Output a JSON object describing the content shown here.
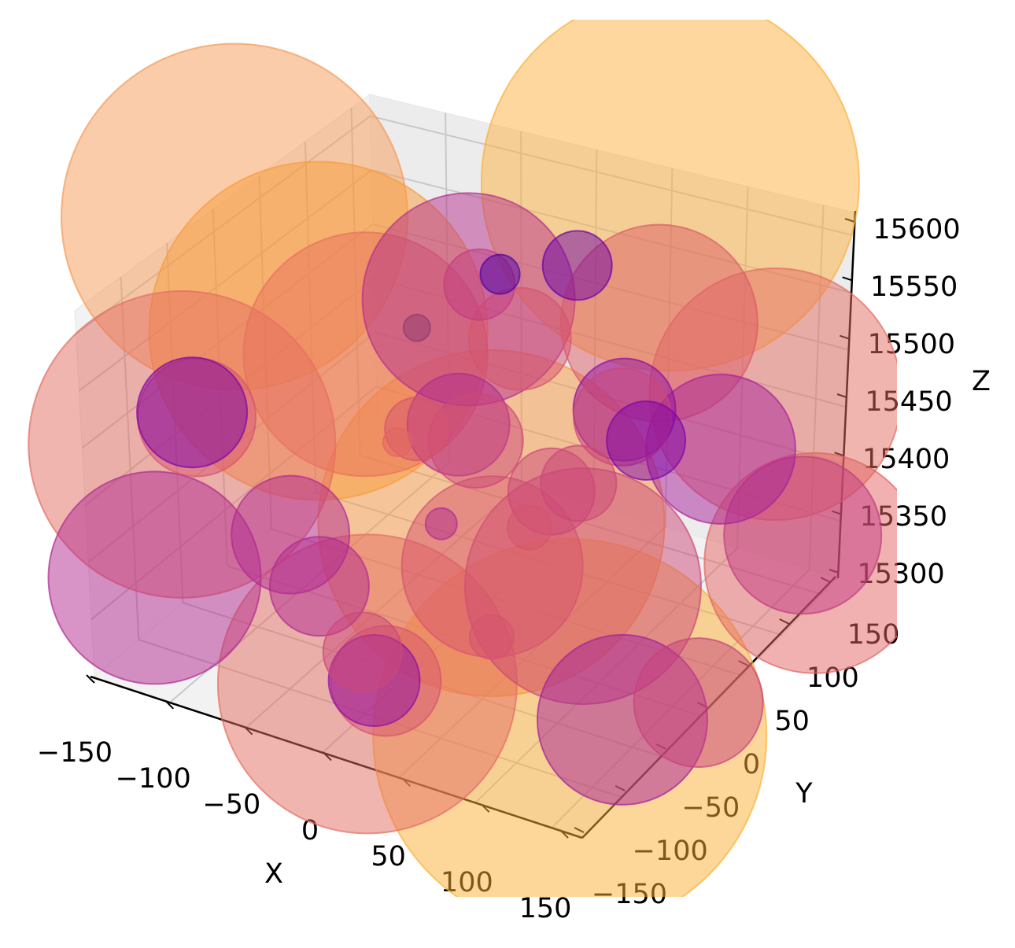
{
  "chart_data": {
    "type": "scatter3d",
    "xlabel": "X",
    "ylabel": "Y",
    "zlabel": "Z",
    "xlim": [
      -150,
      150
    ],
    "ylim": [
      -150,
      150
    ],
    "zlim": [
      15290,
      15610
    ],
    "xticks": [
      "−150",
      "−100",
      "−50",
      "0",
      "50",
      "100",
      "150"
    ],
    "yticks": [
      "−150",
      "−100",
      "−50",
      "0",
      "50",
      "100",
      "150"
    ],
    "zticks": [
      "15300",
      "15350",
      "15400",
      "15450",
      "15500",
      "15550",
      "15600"
    ],
    "grid": true,
    "alpha": 0.5,
    "points": [
      {
        "x": 110,
        "y": 0,
        "z": 15741,
        "s": 14400,
        "color": "#fbb03b"
      },
      {
        "x": 68,
        "y": 0,
        "z": 15226,
        "s": 15625,
        "color": "#fcaf34"
      },
      {
        "x": -150,
        "y": 0,
        "z": 15585,
        "s": 12100,
        "color": "#f59a55"
      },
      {
        "x": 14,
        "y": 0,
        "z": 15390,
        "s": 12100,
        "color": "#f8963f"
      },
      {
        "x": -96,
        "y": 0,
        "z": 15509,
        "s": 11556,
        "color": "#f99b3a"
      },
      {
        "x": -174,
        "y": 0,
        "z": 15370,
        "s": 9506,
        "color": "#e46c62"
      },
      {
        "x": -55,
        "y": 0,
        "z": 15213,
        "s": 9025,
        "color": "#e46c62"
      },
      {
        "x": 180,
        "y": 0,
        "z": 15585,
        "s": 6400,
        "color": "#e46c62"
      },
      {
        "x": -67,
        "y": 0,
        "z": 15502,
        "s": 6006,
        "color": "#e8705c"
      },
      {
        "x": 71,
        "y": 0,
        "z": 15361,
        "s": 5625,
        "color": "#cc4778"
      },
      {
        "x": 209,
        "y": 0,
        "z": 15448,
        "s": 4900,
        "color": "#e16462"
      },
      {
        "x": -7,
        "y": 0,
        "z": 15580,
        "s": 4556,
        "color": "#b52f8c"
      },
      {
        "x": -186,
        "y": 0,
        "z": 15245,
        "s": 4556,
        "color": "#b12a90"
      },
      {
        "x": 108,
        "y": 0,
        "z": 15614,
        "s": 3906,
        "color": "#dc5b67"
      },
      {
        "x": 16,
        "y": 0,
        "z": 15352,
        "s": 3306,
        "color": "#d5546e"
      },
      {
        "x": 99,
        "y": 0,
        "z": 15255,
        "s": 2916,
        "color": "#a51f99"
      },
      {
        "x": 201,
        "y": 0,
        "z": 15469,
        "s": 2500,
        "color": "#c23c81"
      },
      {
        "x": 149,
        "y": 0,
        "z": 15521,
        "s": 2256,
        "color": "#a8229a"
      },
      {
        "x": 144,
        "y": 0,
        "z": 15292,
        "s": 1681,
        "color": "#c7427c"
      },
      {
        "x": -166,
        "y": 0,
        "z": 15398,
        "s": 1406,
        "color": "#d5546e"
      },
      {
        "x": -169,
        "y": 0,
        "z": 15401,
        "s": 1225,
        "color": "#7e03a8"
      },
      {
        "x": -106,
        "y": 0,
        "z": 15322,
        "s": 1406,
        "color": "#b12a90"
      },
      {
        "x": -44,
        "y": 0,
        "z": 15221,
        "s": 1225,
        "color": "#d5546e"
      },
      {
        "x": 25,
        "y": 0,
        "z": 15560,
        "s": 1056,
        "color": "#d5546e"
      },
      {
        "x": 90,
        "y": 0,
        "z": 15528,
        "s": 1056,
        "color": "#8f0da4"
      },
      {
        "x": -9,
        "y": 0,
        "z": 15467,
        "s": 1056,
        "color": "#b12a90"
      },
      {
        "x": 89,
        "y": 0,
        "z": 15521,
        "s": 961,
        "color": "#cc4778"
      },
      {
        "x": -87,
        "y": 0,
        "z": 15285,
        "s": 992,
        "color": "#b12a90"
      },
      {
        "x": 2,
        "y": 0,
        "z": 15458,
        "s": 900,
        "color": "#cc4778"
      },
      {
        "x": -51,
        "y": 0,
        "z": 15218,
        "s": 841,
        "color": "#8f0da4"
      },
      {
        "x": 49,
        "y": 0,
        "z": 15435,
        "s": 756,
        "color": "#cc4778"
      },
      {
        "x": 104,
        "y": 0,
        "z": 15507,
        "s": 625,
        "color": "#7e03a8"
      },
      {
        "x": -59,
        "y": 0,
        "z": 15240,
        "s": 625,
        "color": "#cc4778"
      },
      {
        "x": 65,
        "y": 0,
        "z": 15450,
        "s": 576,
        "color": "#cc4778"
      },
      {
        "x": -1,
        "y": 0,
        "z": 15596,
        "s": 506,
        "color": "#c23c81"
      },
      {
        "x": 57,
        "y": 0,
        "z": 15641,
        "s": 484,
        "color": "#6a00a8"
      },
      {
        "x": -34,
        "y": 0,
        "z": 15451,
        "s": 400,
        "color": "#d5546e"
      },
      {
        "x": 11,
        "y": 0,
        "z": 15611,
        "s": 156,
        "color": "#4c02a1"
      },
      {
        "x": 18,
        "y": 0,
        "z": 15290,
        "s": 196,
        "color": "#d5546e"
      },
      {
        "x": 37,
        "y": 0,
        "z": 15397,
        "s": 196,
        "color": "#d5546e"
      },
      {
        "x": -16,
        "y": 0,
        "z": 15375,
        "s": 100,
        "color": "#b12a90"
      },
      {
        "x": -45,
        "y": 0,
        "z": 15434,
        "s": 81,
        "color": "#e16462"
      },
      {
        "x": -37,
        "y": 0,
        "z": 15540,
        "s": 72,
        "color": "#8f3a70"
      }
    ]
  }
}
